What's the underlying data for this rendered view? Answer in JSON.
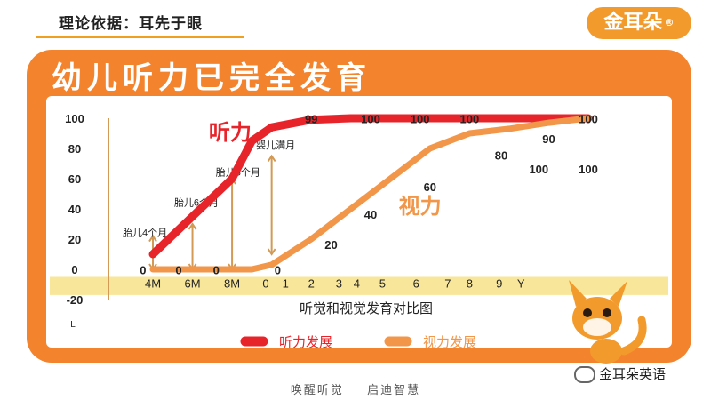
{
  "header": {
    "title": "理论依据：耳先于眼",
    "logo_text": "金耳朵",
    "logo_mark": "®"
  },
  "panel": {
    "title": "幼儿听力已完全发育"
  },
  "footer": {
    "left": "唤醒听觉",
    "right": "启迪智慧"
  },
  "wechat": {
    "name": "金耳朵英语"
  },
  "colors": {
    "hearing": "#e8242b",
    "vision": "#f2974a",
    "band": "#f8e79a",
    "axis": "#d29a55",
    "panel": "#f3832d"
  },
  "chart_data": {
    "type": "line",
    "xlabel": "听觉和视觉发育对比图",
    "corner_label": "L",
    "categories": [
      "4M",
      "6M",
      "8M",
      "0",
      "1",
      "2",
      "3",
      "4",
      "5",
      "6",
      "7",
      "8",
      "9",
      "Y"
    ],
    "yticks": [
      "100",
      "80",
      "60",
      "40",
      "20",
      "0",
      "-20"
    ],
    "ylim": [
      -20,
      100
    ],
    "legend": {
      "position": "bottom",
      "entries": [
        "听力发展",
        "视力发展"
      ]
    },
    "series": [
      {
        "name": "听力",
        "color": "#e8242b",
        "x": [
          4,
          6,
          8,
          9,
          10,
          12,
          14,
          16,
          18,
          20,
          22,
          24,
          26
        ],
        "y": [
          10,
          35,
          60,
          85,
          94,
          99,
          100,
          100,
          100,
          100,
          100,
          100,
          100
        ]
      },
      {
        "name": "视力",
        "color": "#f2974a",
        "x": [
          4,
          6,
          8,
          9,
          10,
          12,
          14,
          16,
          18,
          20,
          22,
          24,
          26
        ],
        "y": [
          0,
          0,
          0,
          0,
          3,
          20,
          40,
          60,
          80,
          90,
          93,
          97,
          100
        ]
      }
    ],
    "data_labels": [
      {
        "text": "99",
        "x": 12,
        "y": 99
      },
      {
        "text": "100",
        "x": 15,
        "y": 99
      },
      {
        "text": "100",
        "x": 17.5,
        "y": 99
      },
      {
        "text": "100",
        "x": 20,
        "y": 99
      },
      {
        "text": "100",
        "x": 26,
        "y": 99
      },
      {
        "text": "90",
        "x": 24,
        "y": 86
      },
      {
        "text": "80",
        "x": 21.6,
        "y": 75
      },
      {
        "text": "100",
        "x": 23.5,
        "y": 66
      },
      {
        "text": "100",
        "x": 26,
        "y": 66
      },
      {
        "text": "60",
        "x": 18,
        "y": 54
      },
      {
        "text": "40",
        "x": 15,
        "y": 36
      },
      {
        "text": "20",
        "x": 13,
        "y": 16
      },
      {
        "text": "0",
        "x": 10.3,
        "y": -1
      },
      {
        "text": "0",
        "x": 5.3,
        "y": -1
      },
      {
        "text": "0",
        "x": 7.2,
        "y": -1
      },
      {
        "text": "0",
        "x": 3.5,
        "y": -1
      }
    ],
    "annotations": [
      {
        "text": "胎儿4个月",
        "x": 3.6,
        "y": 22,
        "arrow_x": 4,
        "arrow_top": 22,
        "arrow_bottom": 0
      },
      {
        "text": "胎儿6个月",
        "x": 6.2,
        "y": 42,
        "arrow_x": 6,
        "arrow_top": 30,
        "arrow_bottom": 0
      },
      {
        "text": "胎儿8个月",
        "x": 8.3,
        "y": 62,
        "arrow_x": 8,
        "arrow_top": 60,
        "arrow_bottom": 0
      },
      {
        "text": "婴儿满月",
        "x": 10.2,
        "y": 80,
        "arrow_x": 10,
        "arrow_top": 75,
        "arrow_bottom": 10
      }
    ],
    "series_callouts": [
      {
        "text": "听力",
        "color": "#e8242b",
        "x": 7.9,
        "y": 86
      },
      {
        "text": "视力",
        "color": "#f2974a",
        "x": 17.5,
        "y": 37
      }
    ]
  }
}
